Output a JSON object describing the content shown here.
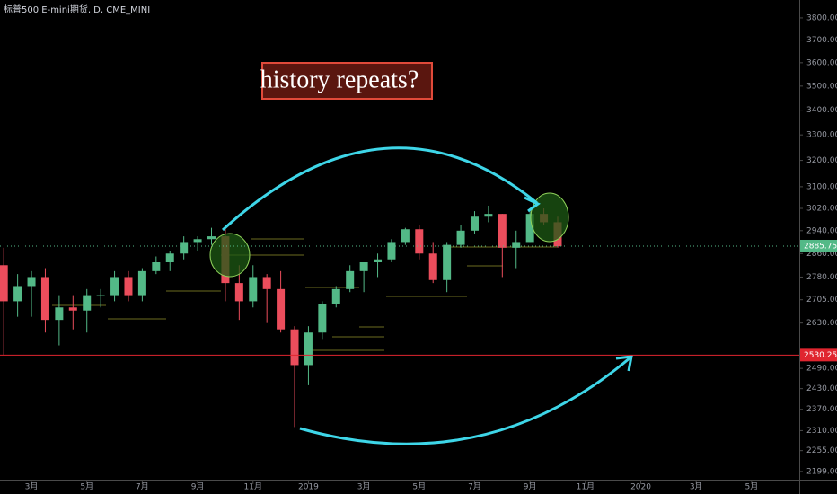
{
  "chart_data": {
    "type": "candlestick",
    "title": "标普500 E-mini期货, D, CME_MINI",
    "annotation": "history repeats?",
    "up_color": "#53b987",
    "down_color": "#eb4d5c",
    "log_scale": true,
    "categories": [
      null,
      null,
      "3月",
      null,
      null,
      null,
      "5月",
      null,
      null,
      null,
      "7月",
      null,
      null,
      null,
      "9月",
      null,
      null,
      null,
      "11月",
      null,
      null,
      null,
      "2019",
      null,
      null,
      null,
      "3月",
      null,
      null,
      null,
      "5月",
      null,
      null,
      null,
      "7月",
      null,
      null,
      null,
      "9月",
      null,
      null,
      null,
      "11月",
      null,
      null,
      null,
      "2020",
      null,
      null,
      null,
      "3月",
      null,
      null,
      null,
      "5月",
      null,
      null,
      null
    ],
    "open": [
      2820,
      2700,
      2750,
      2780,
      2640,
      2680,
      2670,
      2720,
      2720,
      2780,
      2720,
      2800,
      2830,
      2860,
      2900,
      2910,
      2920,
      2760,
      2700,
      2780,
      2740,
      2610,
      2500,
      2600,
      2690,
      2740,
      2800,
      2830,
      2840,
      2900,
      2945,
      2860,
      2770,
      2890,
      2940,
      2990,
      3000,
      2880,
      2900,
      3000,
      2970,
      null,
      null,
      null,
      null,
      null,
      null,
      null,
      null,
      null,
      null,
      null,
      null,
      null,
      null,
      null,
      null,
      null
    ],
    "high": [
      2880,
      2790,
      2800,
      2810,
      2720,
      2720,
      2740,
      2740,
      2800,
      2800,
      2810,
      2850,
      2870,
      2920,
      2920,
      2950,
      2945,
      2820,
      2820,
      2790,
      2800,
      2620,
      2620,
      2700,
      2750,
      2820,
      2830,
      2860,
      2910,
      2950,
      2960,
      2900,
      2900,
      2960,
      3010,
      3030,
      3000,
      2940,
      3010,
      3020,
      2990,
      null,
      null,
      null,
      null,
      null,
      null,
      null,
      null,
      null,
      null,
      null,
      null,
      null,
      null,
      null,
      null,
      null
    ],
    "low": [
      2530,
      2650,
      2650,
      2600,
      2560,
      2610,
      2600,
      2680,
      2700,
      2700,
      2700,
      2790,
      2800,
      2840,
      2870,
      2890,
      2700,
      2640,
      2680,
      2630,
      2600,
      2320,
      2440,
      2580,
      2680,
      2730,
      2730,
      2780,
      2830,
      2890,
      2840,
      2760,
      2730,
      2880,
      2930,
      2970,
      2780,
      2810,
      2900,
      2960,
      2880,
      null,
      null,
      null,
      null,
      null,
      null,
      null,
      null,
      null,
      null,
      null,
      null,
      null,
      null,
      null,
      null,
      null
    ],
    "close": [
      2700,
      2750,
      2780,
      2640,
      2680,
      2670,
      2720,
      2720,
      2780,
      2720,
      2800,
      2830,
      2860,
      2900,
      2910,
      2920,
      2760,
      2700,
      2780,
      2740,
      2610,
      2500,
      2600,
      2690,
      2740,
      2800,
      2830,
      2840,
      2900,
      2945,
      2860,
      2770,
      2890,
      2940,
      2990,
      3000,
      2880,
      2900,
      3000,
      2970,
      2885,
      null,
      null,
      null,
      null,
      null,
      null,
      null,
      null,
      null,
      null,
      null,
      null,
      null,
      null,
      null,
      null,
      null
    ],
    "ylim": [
      2175,
      3883
    ],
    "yticks": [
      {
        "value": 3800,
        "label": "3800.00"
      },
      {
        "value": 3700,
        "label": "3700.00"
      },
      {
        "value": 3600,
        "label": "3600.00"
      },
      {
        "value": 3500,
        "label": "3500.00"
      },
      {
        "value": 3400,
        "label": "3400.00"
      },
      {
        "value": 3300,
        "label": "3300.00"
      },
      {
        "value": 3200,
        "label": "3200.00"
      },
      {
        "value": 3100,
        "label": "3100.00"
      },
      {
        "value": 3020,
        "label": "3020.00"
      },
      {
        "value": 2940,
        "label": "2940.00"
      },
      {
        "value": 2860,
        "label": "2860.00"
      },
      {
        "value": 2780,
        "label": "2780.00"
      },
      {
        "value": 2705,
        "label": "2705.00"
      },
      {
        "value": 2630,
        "label": "2630.00"
      },
      {
        "value": 2490,
        "label": "2490.00"
      },
      {
        "value": 2430,
        "label": "2430.00"
      },
      {
        "value": 2370,
        "label": "2370.00"
      },
      {
        "value": 2310,
        "label": "2310.00"
      },
      {
        "value": 2255,
        "label": "2255.00"
      },
      {
        "value": 2199,
        "label": "2199.00"
      }
    ],
    "price_labels": [
      {
        "value": 2885.75,
        "color": "#53b987"
      },
      {
        "value": 2530.25,
        "color": "#e0252f"
      }
    ]
  }
}
